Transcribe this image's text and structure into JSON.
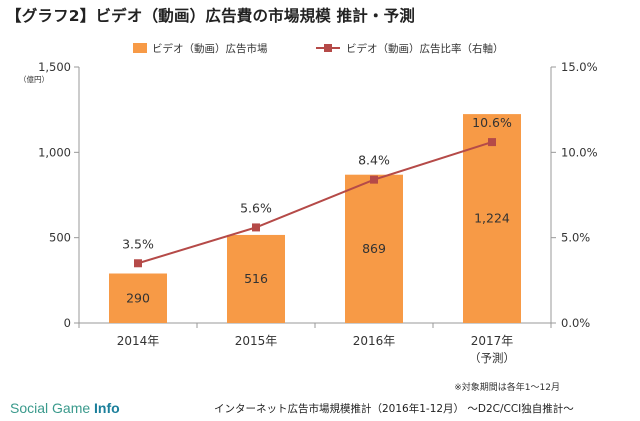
{
  "title": "【グラフ2】ビデオ（動画）広告費の市場規模 推計・予測",
  "note": "※対象期間は各年1～12月",
  "source": "インターネット広告市場規模推計（2016年1-12月） ～D2C/CCI独自推計～",
  "logo": {
    "text": "Social Game ",
    "strong": "Info"
  },
  "colors": {
    "bar": "#f79a46",
    "line": "#b54a48",
    "axis": "#999999"
  },
  "chart_data": {
    "type": "bar",
    "categories": [
      "2014年",
      "2015年",
      "2016年",
      "2017年"
    ],
    "category_sublabels": [
      "",
      "",
      "",
      "（予測）"
    ],
    "series": [
      {
        "name": "ビデオ（動画）広告市場",
        "type": "bar",
        "axis": "left",
        "values": [
          290,
          516,
          869,
          1224
        ],
        "labels": [
          "290",
          "516",
          "869",
          "1,224"
        ]
      },
      {
        "name": "ビデオ（動画）広告比率（右軸）",
        "type": "line",
        "axis": "right",
        "values": [
          3.5,
          5.6,
          8.4,
          10.6
        ],
        "labels": [
          "3.5%",
          "5.6%",
          "8.4%",
          "10.6%"
        ]
      }
    ],
    "y_left": {
      "unit": "（億円）",
      "ylim": [
        0,
        1500
      ],
      "ticks": [
        "0",
        "500",
        "1,000",
        "1,500"
      ]
    },
    "y_right": {
      "ylim": [
        0,
        15
      ],
      "ticks": [
        "0.0%",
        "5.0%",
        "10.0%",
        "15.0%"
      ]
    },
    "legend": "top",
    "grid": false
  }
}
